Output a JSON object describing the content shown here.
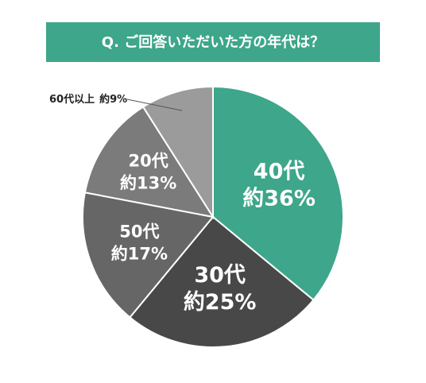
{
  "chart_data": {
    "type": "pie",
    "title": "Q. ご回答いただいた方の年代は？",
    "categories": [
      "40代",
      "30代",
      "50代",
      "20代",
      "60代以上"
    ],
    "values": [
      36,
      25,
      17,
      13,
      9
    ],
    "value_labels": [
      "約36%",
      "約25%",
      "約17%",
      "約13%",
      "約9%"
    ],
    "colors": [
      "#3ea68a",
      "#484848",
      "#666666",
      "#7b7b7b",
      "#9b9b9b"
    ],
    "title_color": "#3ea68a"
  }
}
